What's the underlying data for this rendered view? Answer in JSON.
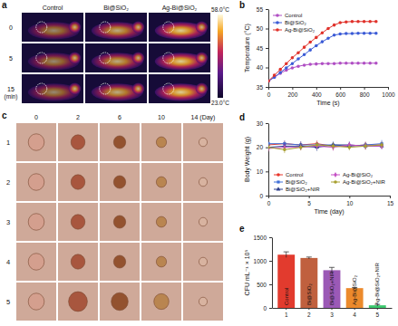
{
  "figure": {
    "panel_labels": [
      "a",
      "b",
      "c",
      "d",
      "e"
    ],
    "thermal_images": {
      "columns": [
        "Control",
        "Bi@SiO₂",
        "Ag-Bi@SiO₂"
      ],
      "rows": [
        "0",
        "5",
        "15"
      ],
      "row_unit": "(min)",
      "colorbar": {
        "lim": [
          23,
          58
        ],
        "ticks": [
          {
            "value": 58,
            "label": "58.0°C"
          },
          {
            "value": 23,
            "label": "23.0°C"
          }
        ]
      }
    },
    "wound_photos": {
      "columns": [
        "0",
        "2",
        "6",
        "10",
        "14 (Day)"
      ],
      "rows": [
        "1",
        "2",
        "3",
        "4",
        "5"
      ]
    }
  },
  "chart_data": [
    {
      "type": "line",
      "x_label": "Time (s)",
      "y_label": "Temperature (°C)",
      "x": [
        0,
        50,
        100,
        150,
        200,
        250,
        300,
        350,
        400,
        450,
        500,
        550,
        600,
        650,
        700,
        750,
        800,
        850,
        900
      ],
      "series": [
        {
          "name": "Control",
          "color": "#b04fc4",
          "marker": "circle",
          "values": [
            36.5,
            37.5,
            38.5,
            39.3,
            39.9,
            40.3,
            40.6,
            40.8,
            40.9,
            41.0,
            41.0,
            41.0,
            41.1,
            41.1,
            41.1,
            41.1,
            41.1,
            41.1,
            41.1
          ]
        },
        {
          "name": "Bi@SiO₂",
          "color": "#3b5bd6",
          "marker": "circle",
          "values": [
            36.5,
            37.5,
            38.7,
            39.9,
            41.0,
            42.2,
            43.3,
            44.5,
            45.6,
            46.6,
            47.5,
            48.3,
            48.6,
            48.7,
            48.7,
            48.8,
            48.8,
            48.8,
            48.8
          ]
        },
        {
          "name": "Ag-Bi@SiO₂",
          "color": "#e0322b",
          "marker": "circle",
          "values": [
            36.5,
            38.0,
            39.5,
            41.0,
            42.5,
            43.8,
            45.2,
            46.5,
            47.7,
            48.9,
            50.0,
            50.9,
            51.5,
            51.7,
            51.8,
            51.8,
            51.8,
            51.8,
            51.8
          ]
        }
      ],
      "xlim": [
        0,
        1000
      ],
      "xticks": [
        0,
        200,
        400,
        600,
        800,
        1000
      ],
      "ylim": [
        35,
        55
      ],
      "yticks": [
        35,
        40,
        45,
        50,
        55
      ],
      "legend": "upper left"
    },
    {
      "type": "line",
      "x_label": "Time (day)",
      "y_label": "Body Weight (g)",
      "x": [
        0,
        2,
        4,
        6,
        8,
        10,
        12,
        14
      ],
      "series": [
        {
          "name": "Control",
          "color": "#e8352a",
          "marker": "circle",
          "values": [
            21.0,
            21.5,
            21.0,
            21.5,
            20.5,
            20.5,
            21.0,
            21.0
          ],
          "errors": [
            1.5,
            1.2,
            1.4,
            1.3,
            1.5,
            1.2,
            1.3,
            1.4
          ]
        },
        {
          "name": "Bi@SiO₂",
          "color": "#3f6fd8",
          "marker": "square",
          "values": [
            21.5,
            21.5,
            21.0,
            21.0,
            21.0,
            20.5,
            21.0,
            21.5
          ],
          "errors": [
            1.2,
            1.3,
            1.5,
            1.2,
            1.4,
            1.3,
            1.2,
            1.5
          ]
        },
        {
          "name": "Bi@SiO₂+NIR",
          "color": "#2c3e8c",
          "marker": "triangle",
          "values": [
            20.0,
            20.5,
            20.5,
            20.0,
            21.0,
            21.0,
            20.5,
            20.5
          ],
          "errors": [
            1.4,
            1.2,
            1.3,
            1.5,
            1.2,
            1.4,
            1.3,
            1.2
          ]
        },
        {
          "name": "Ag-Bi@SiO₂",
          "color": "#c44fc4",
          "marker": "diamond",
          "values": [
            19.5,
            20.0,
            20.0,
            20.5,
            20.0,
            21.0,
            20.5,
            20.5
          ],
          "errors": [
            1.3,
            1.5,
            1.2,
            1.3,
            1.4,
            1.2,
            1.5,
            1.3
          ]
        },
        {
          "name": "Ag-Bi@SiO₂+NIR",
          "color": "#a8a030",
          "marker": "circle",
          "values": [
            20.0,
            19.0,
            20.0,
            21.0,
            20.5,
            20.0,
            20.5,
            21.0
          ],
          "errors": [
            1.5,
            1.4,
            1.3,
            1.2,
            1.5,
            1.3,
            1.4,
            1.2
          ]
        }
      ],
      "xlim": [
        0,
        15
      ],
      "xticks": [
        0,
        5,
        10,
        15
      ],
      "ylim": [
        0,
        30
      ],
      "yticks": [
        0,
        10,
        20,
        30
      ],
      "legend": "lower center"
    },
    {
      "type": "bar",
      "y_label": "CFU mL⁻¹ × 10⁵",
      "categories": [
        "1",
        "2",
        "3",
        "4",
        "5"
      ],
      "values": [
        1130,
        1060,
        800,
        420,
        55
      ],
      "errors": [
        60,
        20,
        60,
        15,
        20
      ],
      "colors": [
        "#e23b2e",
        "#c0603e",
        "#9b59b6",
        "#ec8a2c",
        "#3cc86e"
      ],
      "annotations": [
        "Control",
        "Bi@SiO₂",
        "Bi@SiO₂+NIR",
        "Ag-Bi@SiO₂",
        "Ag-Bi@SiO₂+NIR"
      ],
      "ylim": [
        0,
        1500
      ],
      "yticks": [
        0,
        500,
        1000,
        1500
      ]
    }
  ]
}
